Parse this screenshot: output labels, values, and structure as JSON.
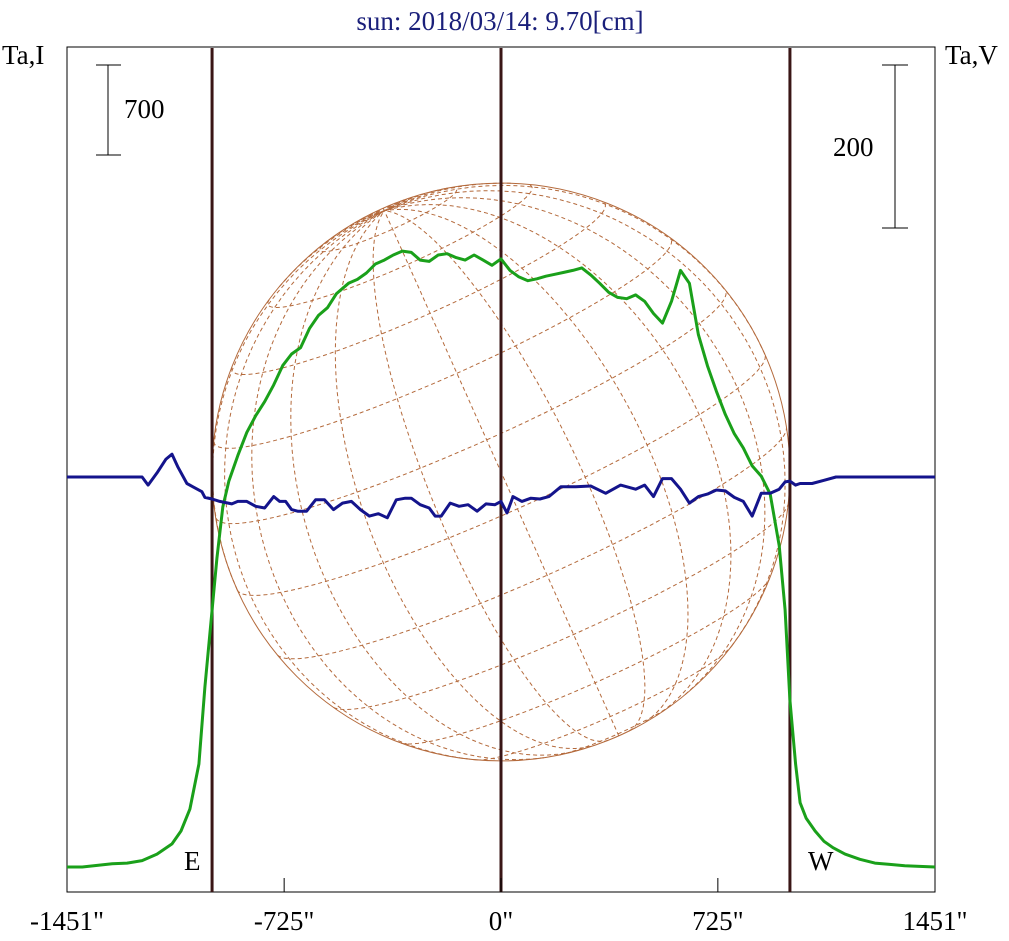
{
  "chart_data": {
    "type": "line",
    "title": "sun: 2018/03/14: 9.70[cm]",
    "ylabel_left": "Ta,I",
    "ylabel_right": "Ta,V",
    "xlabel": "",
    "x_ticks": [
      "-1451\"",
      "-725\"",
      "0\"",
      "725\"",
      "1451\""
    ],
    "x_tick_values": [
      -1451,
      -725,
      0,
      725,
      1451
    ],
    "xlim": [
      -1451,
      1451
    ],
    "left_scale_bar": {
      "label": "700",
      "value": 700
    },
    "right_scale_bar": {
      "label": "200",
      "value": 200
    },
    "limb_labels": {
      "east": "E",
      "west": "W"
    },
    "vertical_markers": [
      -966,
      0,
      966
    ],
    "solar_disk": {
      "radius_arcsec": 966,
      "center": [
        0,
        0
      ]
    },
    "series": [
      {
        "name": "",
        "color": "#1aa01a",
        "scale": "left",
        "x": [
          -1451,
          -1400,
          -1300,
          -1250,
          -1200,
          -1150,
          -1100,
          -1070,
          -1040,
          -1010,
          -990,
          -966,
          -950,
          -930,
          -910,
          -880,
          -850,
          -820,
          -790,
          -760,
          -730,
          -700,
          -670,
          -640,
          -610,
          -580,
          -550,
          -510,
          -480,
          -450,
          -420,
          -390,
          -360,
          -330,
          -300,
          -270,
          -240,
          -210,
          -180,
          -150,
          -120,
          -90,
          -60,
          -30,
          0,
          30,
          60,
          90,
          120,
          150,
          180,
          210,
          240,
          270,
          300,
          330,
          360,
          390,
          420,
          450,
          480,
          510,
          540,
          570,
          600,
          630,
          660,
          690,
          720,
          750,
          780,
          810,
          840,
          870,
          900,
          930,
          950,
          966,
          985,
          1000,
          1020,
          1050,
          1080,
          1110,
          1150,
          1200,
          1250,
          1300,
          1350,
          1400,
          1451
        ],
        "y": [
          0,
          0,
          25,
          30,
          50,
          100,
          180,
          280,
          450,
          800,
          1400,
          2000,
          2400,
          2800,
          3000,
          3200,
          3380,
          3510,
          3620,
          3750,
          3900,
          3990,
          4040,
          4190,
          4290,
          4350,
          4460,
          4540,
          4570,
          4620,
          4690,
          4720,
          4760,
          4790,
          4780,
          4720,
          4710,
          4760,
          4770,
          4740,
          4720,
          4760,
          4720,
          4680,
          4730,
          4640,
          4590,
          4560,
          4575,
          4595,
          4610,
          4625,
          4640,
          4660,
          4605,
          4540,
          4470,
          4430,
          4420,
          4450,
          4400,
          4305,
          4230,
          4400,
          4640,
          4540,
          4140,
          3900,
          3700,
          3520,
          3370,
          3260,
          3120,
          3040,
          2900,
          2500,
          2000,
          1300,
          800,
          500,
          380,
          280,
          200,
          150,
          100,
          60,
          30,
          20,
          10,
          5,
          0
        ]
      },
      {
        "name": "",
        "color": "#14148c",
        "scale": "right",
        "x": [
          -1451,
          -1250,
          -1200,
          -1180,
          -1150,
          -1120,
          -1100,
          -1080,
          -1050,
          -1030,
          -1000,
          -990,
          -966,
          -940,
          -900,
          -880,
          -850,
          -820,
          -790,
          -760,
          -740,
          -720,
          -700,
          -680,
          -650,
          -620,
          -590,
          -560,
          -530,
          -500,
          -470,
          -440,
          -410,
          -380,
          -350,
          -320,
          -300,
          -270,
          -240,
          -220,
          -200,
          -170,
          -140,
          -110,
          -80,
          -50,
          -20,
          0,
          20,
          40,
          70,
          100,
          130,
          160,
          200,
          250,
          300,
          350,
          400,
          450,
          480,
          510,
          540,
          570,
          600,
          630,
          660,
          690,
          720,
          750,
          780,
          810,
          840,
          870,
          900,
          930,
          950,
          966,
          985,
          1000,
          1040,
          1080,
          1120,
          1160,
          1200,
          1250,
          1300,
          1350,
          1400,
          1451
        ],
        "y": [
          0,
          0,
          0,
          -10,
          5,
          22,
          28,
          12,
          -8,
          -12,
          -18,
          -25,
          -27,
          -30,
          -33,
          -30,
          -30,
          -36,
          -38,
          -24,
          -30,
          -30,
          -40,
          -42,
          -42,
          -28,
          -28,
          -40,
          -32,
          -30,
          -40,
          -48,
          -45,
          -50,
          -28,
          -26,
          -26,
          -34,
          -38,
          -48,
          -48,
          -32,
          -36,
          -34,
          -42,
          -33,
          -34,
          -30,
          -44,
          -24,
          -30,
          -26,
          -27,
          -24,
          -12,
          -12,
          -11,
          -20,
          -10,
          -15,
          -10,
          -24,
          -2,
          -2,
          -15,
          -32,
          -24,
          -21,
          -16,
          -17,
          -25,
          -30,
          -48,
          -20,
          -20,
          -15,
          -6,
          -5,
          -10,
          -8,
          -8,
          -4,
          0,
          0,
          0,
          0,
          0,
          0,
          0,
          0
        ]
      }
    ],
    "grid": false,
    "legend": "none"
  },
  "colors": {
    "title": "#1a1f7a",
    "frame": "#000000",
    "marker": "#3a1616",
    "disk": "#b46a3c"
  }
}
